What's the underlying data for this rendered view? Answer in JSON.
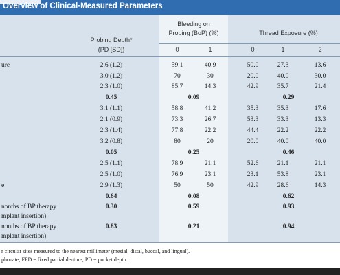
{
  "header": {
    "title": "Overview of Clinical-Measured Parameters"
  },
  "table": {
    "columns": {
      "probing_depth": [
        "Probing Depth*",
        "(PD [SD])"
      ],
      "bop": {
        "title": [
          "Bleeding on",
          "Probing (BoP) (%)"
        ],
        "sub": [
          "0",
          "1"
        ]
      },
      "thread": {
        "title": "Thread Exposure (%)",
        "sub": [
          "0",
          "1",
          "2"
        ]
      }
    },
    "rows": [
      {
        "label": [
          "ure"
        ],
        "cells": [
          "2.6 (1.2)",
          "59.1",
          "40.9",
          "50.0",
          "27.3",
          "13.6"
        ]
      },
      {
        "cells": [
          "3.0 (1.2)",
          "70",
          "30",
          "20.0",
          "40.0",
          "30.0"
        ]
      },
      {
        "cells": [
          "2.3 (1.0)",
          "85.7",
          "14.3",
          "42.9",
          "35.7",
          "21.4"
        ]
      },
      {
        "cells": [
          "0.45",
          "0.09",
          "0.29"
        ]
      },
      {
        "cells": [
          "3.1 (1.1)",
          "58.8",
          "41.2",
          "35.3",
          "35.3",
          "17.6"
        ]
      },
      {
        "cells": [
          "2.1 (0.9)",
          "73.3",
          "26.7",
          "53.3",
          "33.3",
          "13.3"
        ]
      },
      {
        "cells": [
          "2.3 (1.4)",
          "77.8",
          "22.2",
          "44.4",
          "22.2",
          "22.2"
        ]
      },
      {
        "cells": [
          "3.2 (0.8)",
          "80",
          "20",
          "20.0",
          "40.0",
          "40.0"
        ]
      },
      {
        "cells": [
          "0.05",
          "0.25",
          "0.46"
        ]
      },
      {
        "cells": [
          "2.5 (1.1)",
          "78.9",
          "21.1",
          "52.6",
          "21.1",
          "21.1"
        ]
      },
      {
        "cells": [
          "2.5 (1.0)",
          "76.9",
          "23.1",
          "23.1",
          "53.8",
          "23.1"
        ]
      },
      {
        "label": [
          "e"
        ],
        "cells": [
          "2.9 (1.3)",
          "50",
          "50",
          "42.9",
          "28.6",
          "14.3"
        ]
      },
      {
        "cells": [
          "0.64",
          "0.08",
          "0.62"
        ]
      },
      {
        "label": [
          "nonths of BP therapy",
          "mplant insertion)"
        ],
        "cells": [
          "0.30",
          "0.59",
          "0.93"
        ]
      },
      {
        "label": [
          "nonths of BP therapy",
          "mplant insertion)"
        ],
        "cells": [
          "0.83",
          "0.21",
          "0.94"
        ]
      }
    ]
  },
  "footnotes": [
    "r circular sites measured to the nearest millimeter (mesial, distal, buccal, and lingual).",
    "phonate; FPD = fixed partial denture; PD = pocket depth."
  ]
}
